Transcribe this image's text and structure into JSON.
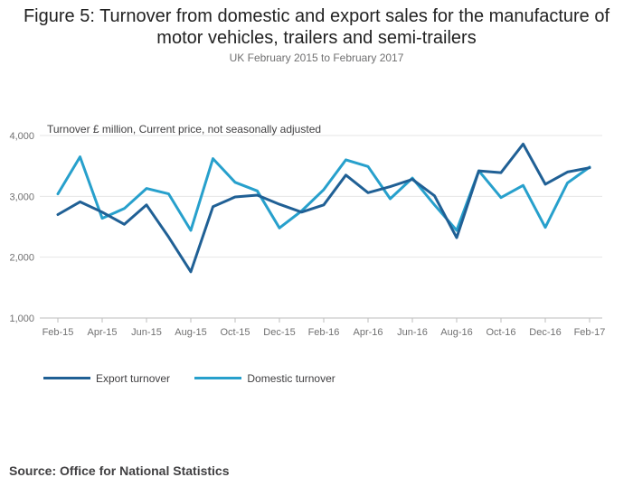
{
  "chart_data": {
    "type": "line",
    "title_line1": "Figure 5: Turnover from domestic and export sales for the manufacture of",
    "title_line2": "motor vehicles, trailers and semi-trailers",
    "subtitle": "UK February 2015 to February 2017",
    "ylabel": "Turnover £ million, Current price, not seasonally adjusted",
    "source": "Source: Office for National Statistics",
    "ylim": [
      1000,
      4000
    ],
    "yticks": [
      1000,
      2000,
      3000,
      4000
    ],
    "ytick_labels": [
      "1,000",
      "2,000",
      "3,000",
      "4,000"
    ],
    "x": [
      "Feb-15",
      "Mar-15",
      "Apr-15",
      "May-15",
      "Jun-15",
      "Jul-15",
      "Aug-15",
      "Sep-15",
      "Oct-15",
      "Nov-15",
      "Dec-15",
      "Jan-16",
      "Feb-16",
      "Mar-16",
      "Apr-16",
      "May-16",
      "Jun-16",
      "Jul-16",
      "Aug-16",
      "Sep-16",
      "Oct-16",
      "Nov-16",
      "Dec-16",
      "Jan-17",
      "Feb-17"
    ],
    "xtick_labels": [
      "Feb-15",
      "Apr-15",
      "Jun-15",
      "Aug-15",
      "Oct-15",
      "Dec-15",
      "Feb-16",
      "Apr-16",
      "Jun-16",
      "Aug-16",
      "Oct-16",
      "Dec-16",
      "Feb-17"
    ],
    "series": [
      {
        "name": "Export turnover",
        "color": "#206095",
        "values": [
          2700,
          2910,
          2740,
          2540,
          2860,
          2330,
          1760,
          2830,
          2990,
          3020,
          2870,
          2740,
          2860,
          3350,
          3060,
          3160,
          3280,
          3010,
          2320,
          3420,
          3390,
          3860,
          3200,
          3400,
          3470
        ]
      },
      {
        "name": "Domestic turnover",
        "color": "#27A0CC",
        "values": [
          3040,
          3650,
          2640,
          2800,
          3130,
          3040,
          2440,
          3620,
          3230,
          3090,
          2480,
          2760,
          3110,
          3600,
          3490,
          2960,
          3300,
          2860,
          2440,
          3420,
          2980,
          3180,
          2490,
          3220,
          3480
        ]
      }
    ]
  }
}
